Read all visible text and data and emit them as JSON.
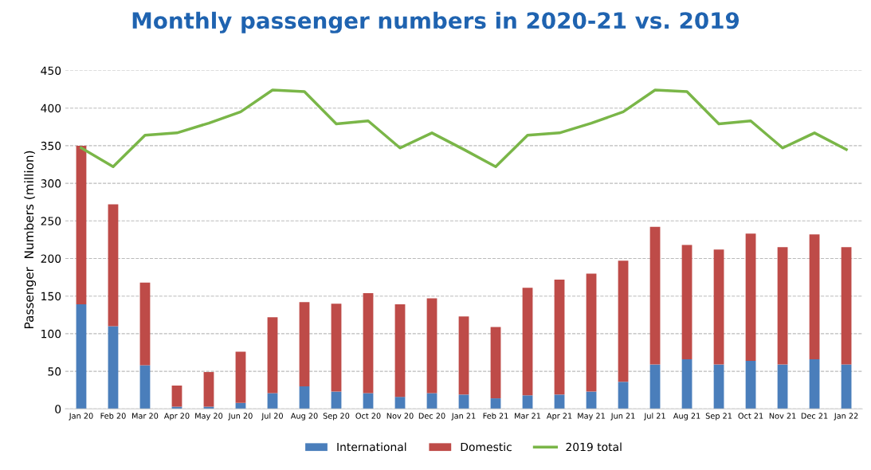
{
  "chart_data": {
    "type": "bar",
    "title": "Monthly passenger numbers in 2020-21 vs. 2019",
    "ylabel": "Passenger  Numbers (million)",
    "categories": [
      "Jan 20",
      "Feb 20",
      "Mar 20",
      "Apr 20",
      "May 20",
      "Jun 20",
      "Jul 20",
      "Aug 20",
      "Sep 20",
      "Oct 20",
      "Nov 20",
      "Dec 20",
      "Jan 21",
      "Feb 21",
      "Mar 21",
      "Apr 21",
      "May 21",
      "Jun 21",
      "Jul 21",
      "Aug 21",
      "Sep 21",
      "Oct 21",
      "Nov 21",
      "Dec 21",
      "Jan 22"
    ],
    "stacked": true,
    "series": [
      {
        "name": "International",
        "color": "#4a7ebb",
        "values": [
          139,
          110,
          58,
          3,
          3,
          8,
          21,
          30,
          23,
          21,
          16,
          21,
          19,
          14,
          18,
          19,
          23,
          36,
          59,
          66,
          59,
          64,
          59,
          66,
          59
        ]
      },
      {
        "name": "Domestic",
        "color": "#be4b48",
        "values": [
          211,
          162,
          110,
          28,
          46,
          68,
          101,
          112,
          117,
          133,
          123,
          126,
          104,
          95,
          143,
          153,
          157,
          161,
          183,
          152,
          153,
          169,
          156,
          166,
          156
        ]
      },
      {
        "name": "2019 total",
        "type": "line",
        "color": "#7ab648",
        "values": [
          347,
          322,
          364,
          367,
          380,
          395,
          424,
          422,
          379,
          383,
          347,
          367,
          345,
          322,
          364,
          367,
          380,
          395,
          424,
          422,
          379,
          383,
          347,
          367,
          345
        ]
      }
    ],
    "ylim": [
      0,
      450
    ],
    "yticks": [
      0,
      50,
      100,
      150,
      200,
      250,
      300,
      350,
      400,
      450
    ],
    "grid": "y",
    "legend": "bottom",
    "marker": "none",
    "line_style": "solid"
  }
}
